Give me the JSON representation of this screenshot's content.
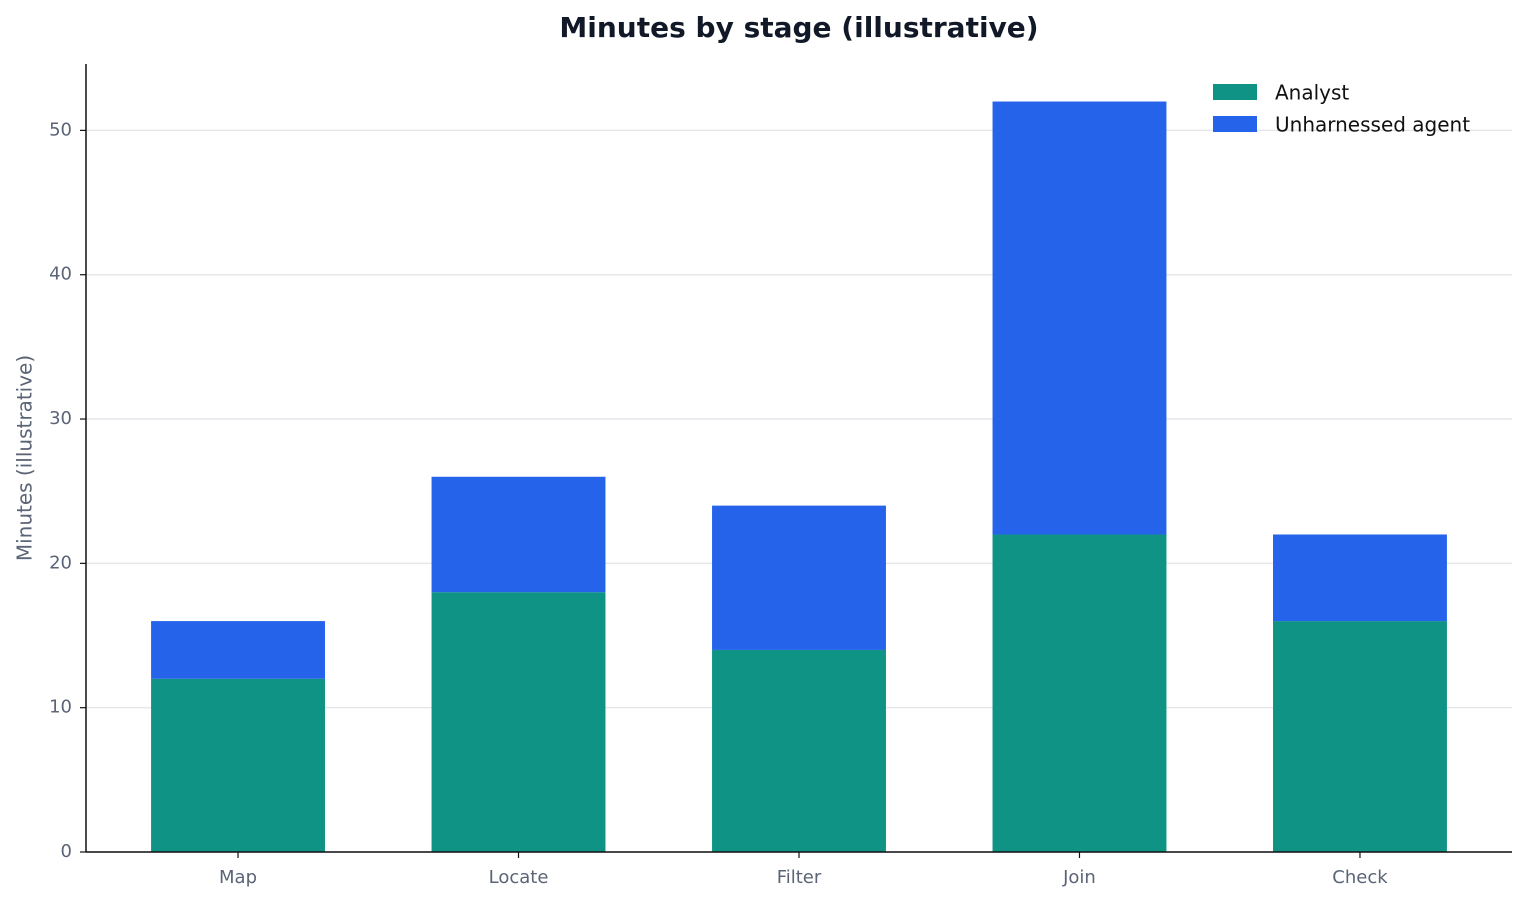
{
  "chart_data": {
    "type": "stacked-bar",
    "title": "Minutes by stage (illustrative)",
    "y_label": "Minutes (illustrative)",
    "categories": [
      "Map",
      "Locate",
      "Filter",
      "Join",
      "Check"
    ],
    "series": [
      {
        "name": "Analyst",
        "color": "#0e9384",
        "values": [
          12,
          18,
          14,
          22,
          16
        ]
      },
      {
        "name": "Unharnessed agent",
        "color": "#2563eb",
        "values": [
          4,
          8,
          10,
          30,
          6
        ]
      }
    ],
    "ylim": [
      0,
      54.6
    ],
    "yticks": [
      0,
      10,
      20,
      30,
      40,
      50
    ],
    "grid": true,
    "legend": "upper-right"
  }
}
